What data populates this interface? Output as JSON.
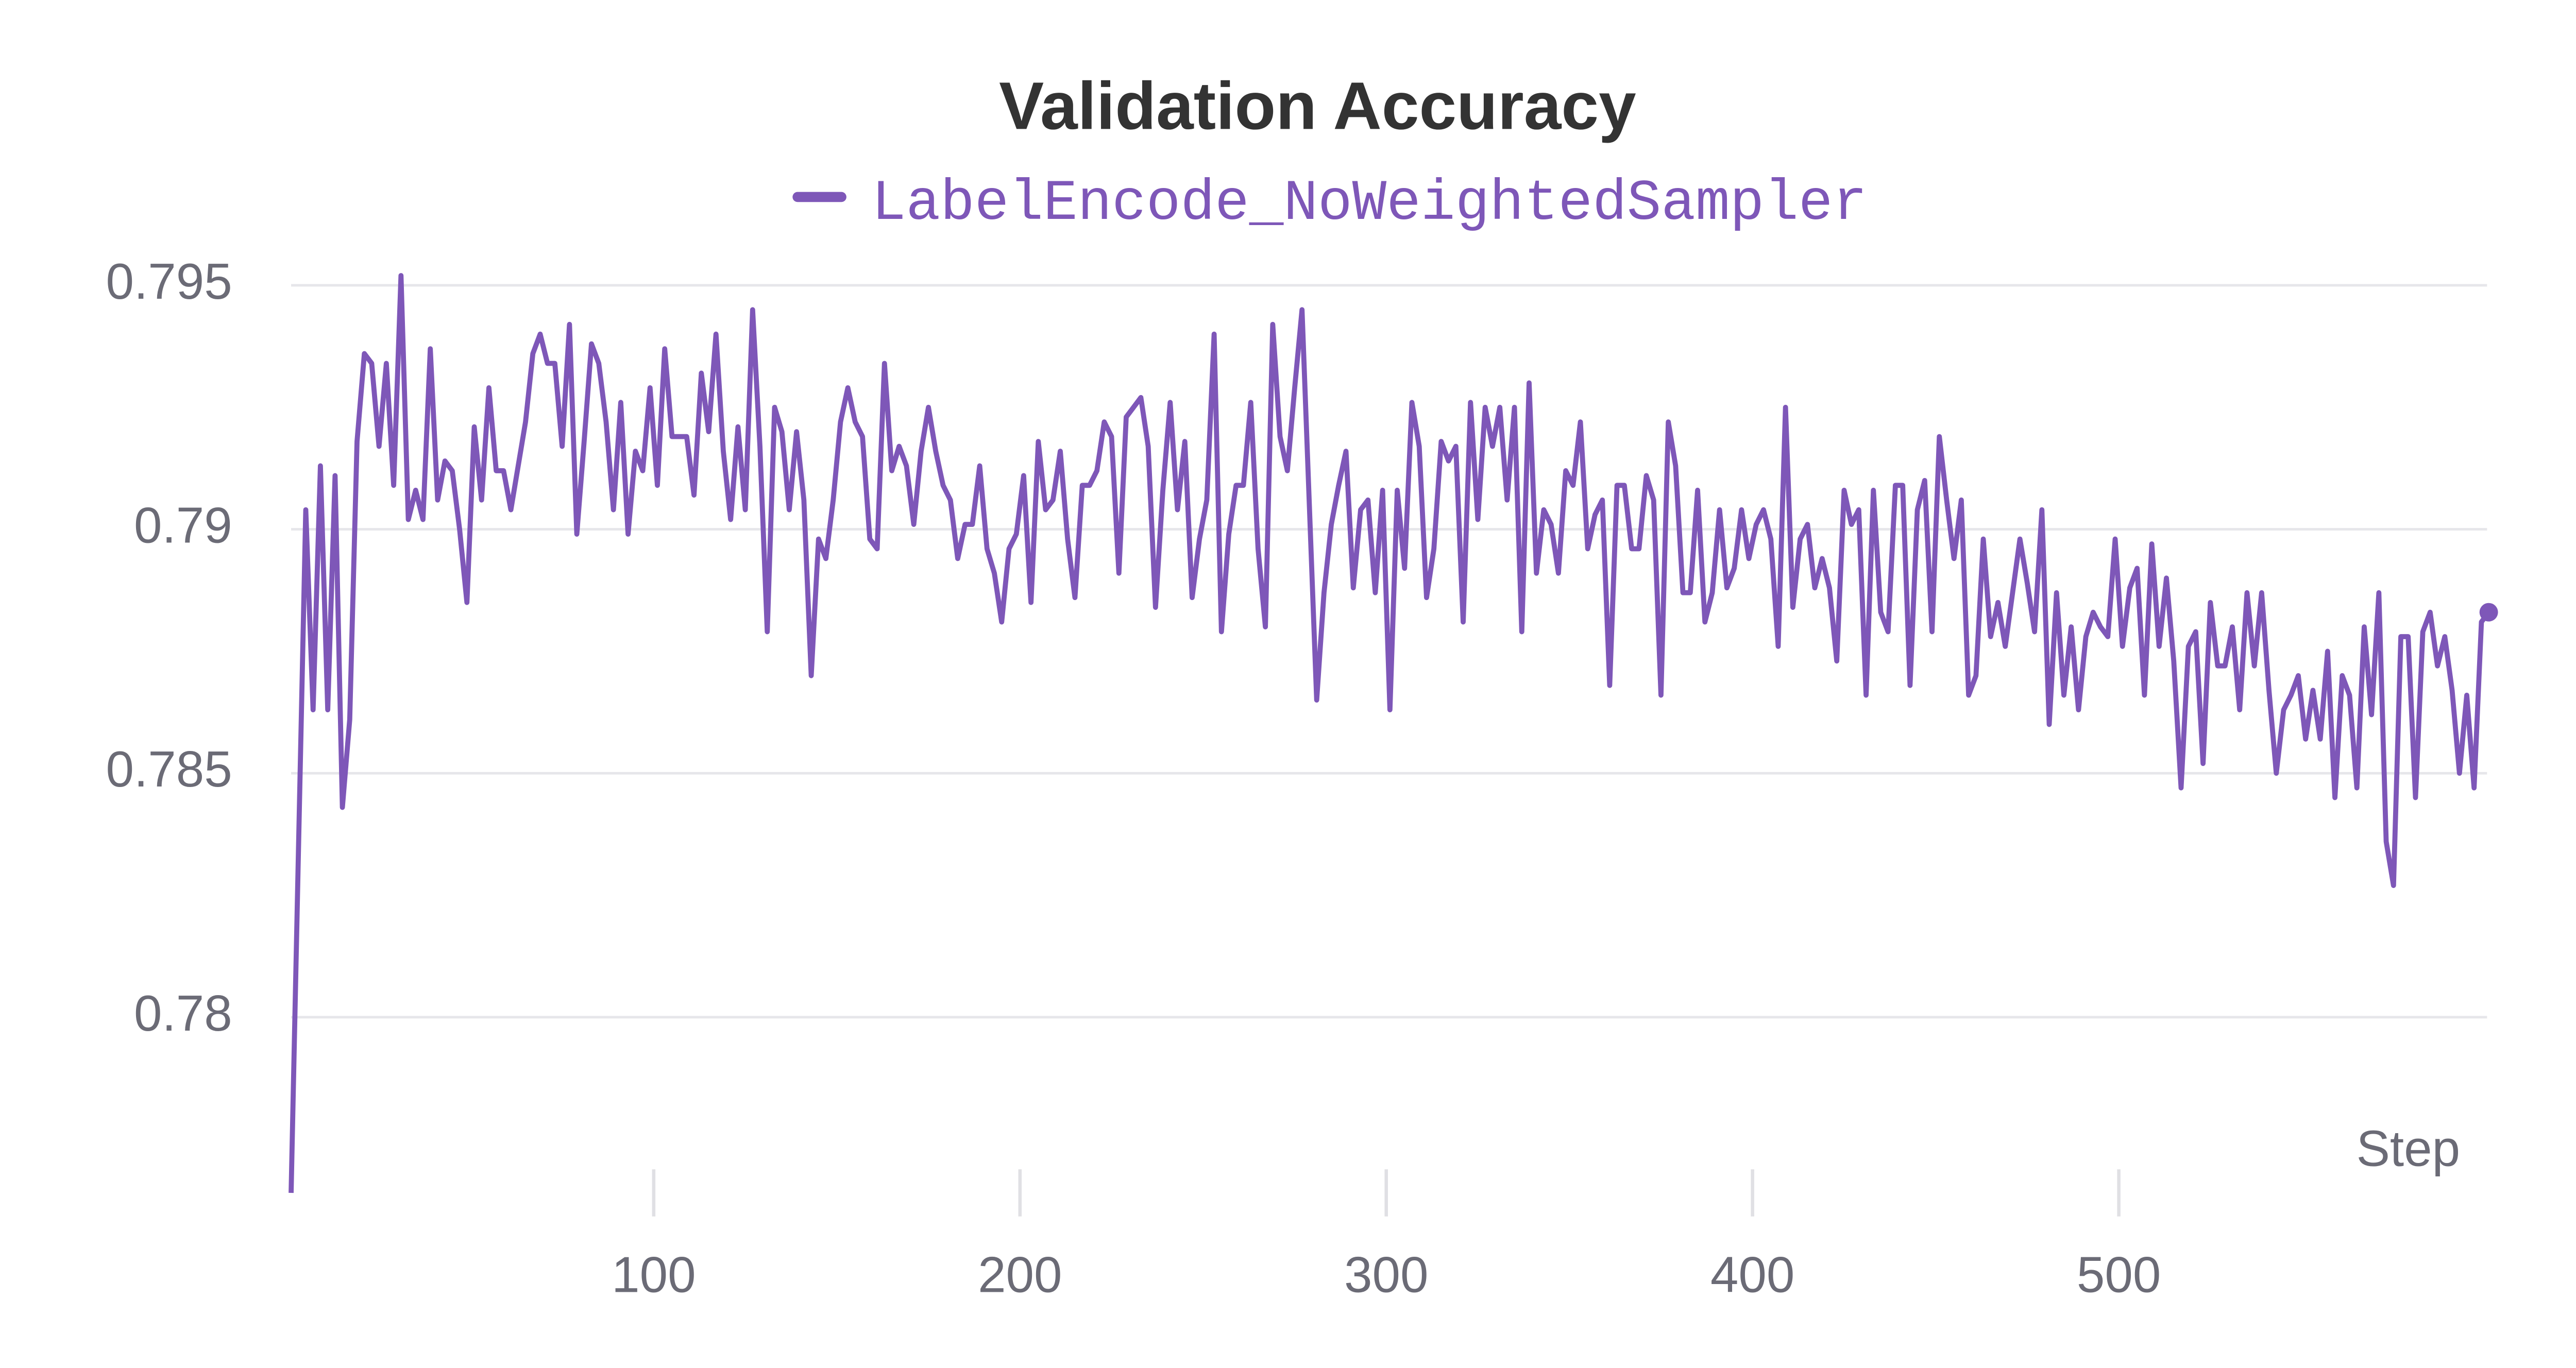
{
  "chart_data": {
    "type": "line",
    "title": "Validation Accuracy",
    "x_label": "Step",
    "xlim": [
      1,
      601
    ],
    "ylim": [
      0.7764,
      0.7955
    ],
    "xticks": [
      100,
      200,
      300,
      400,
      500
    ],
    "yticks": [
      0.78,
      0.785,
      0.79,
      0.795
    ],
    "grid": true,
    "legend": "top",
    "x": [
      1,
      5,
      7,
      9,
      11,
      13,
      15,
      17,
      19,
      21,
      23,
      25,
      27,
      29,
      31,
      33,
      35,
      37,
      39,
      41,
      43,
      45,
      47,
      49,
      51,
      53,
      55,
      57,
      59,
      61,
      63,
      65,
      67,
      69,
      71,
      73,
      75,
      77,
      79,
      81,
      83,
      85,
      87,
      89,
      91,
      93,
      95,
      97,
      99,
      101,
      103,
      105,
      107,
      109,
      111,
      113,
      115,
      117,
      119,
      121,
      123,
      125,
      127,
      129,
      131,
      133,
      135,
      137,
      139,
      141,
      143,
      145,
      147,
      149,
      151,
      153,
      155,
      157,
      159,
      161,
      163,
      165,
      167,
      169,
      171,
      173,
      175,
      177,
      179,
      181,
      183,
      185,
      187,
      189,
      191,
      193,
      195,
      197,
      199,
      201,
      203,
      205,
      207,
      209,
      211,
      213,
      215,
      217,
      219,
      221,
      223,
      225,
      227,
      229,
      231,
      233,
      235,
      237,
      239,
      241,
      243,
      245,
      247,
      249,
      251,
      253,
      255,
      257,
      259,
      261,
      263,
      265,
      267,
      269,
      271,
      273,
      275,
      277,
      279,
      281,
      283,
      285,
      287,
      289,
      291,
      293,
      295,
      297,
      299,
      301,
      303,
      305,
      307,
      309,
      311,
      313,
      315,
      317,
      319,
      321,
      323,
      325,
      327,
      329,
      331,
      333,
      335,
      337,
      339,
      341,
      343,
      345,
      347,
      349,
      351,
      353,
      355,
      357,
      359,
      361,
      363,
      365,
      367,
      369,
      371,
      373,
      375,
      377,
      379,
      381,
      383,
      385,
      387,
      389,
      391,
      393,
      395,
      397,
      399,
      401,
      403,
      405,
      407,
      409,
      411,
      413,
      415,
      417,
      419,
      421,
      423,
      425,
      427,
      429,
      431,
      433,
      435,
      437,
      439,
      441,
      443,
      445,
      447,
      449,
      451,
      453,
      455,
      457,
      459,
      461,
      463,
      465,
      467,
      469,
      471,
      473,
      475,
      477,
      479,
      481,
      483,
      485,
      487,
      489,
      491,
      493,
      495,
      497,
      499,
      501,
      503,
      505,
      507,
      509,
      511,
      513,
      515,
      517,
      519,
      521,
      523,
      525,
      527,
      529,
      531,
      533,
      535,
      537,
      539,
      541,
      543,
      545,
      547,
      549,
      551,
      553,
      555,
      557,
      559,
      561,
      563,
      565,
      567,
      569,
      571,
      573,
      575,
      577,
      579,
      581,
      583,
      585,
      587,
      589,
      591,
      593,
      595,
      597,
      599,
      601
    ],
    "series": [
      {
        "name": "LabelEncode_NoWeightedSampler",
        "color": "#7e57b8",
        "values": [
          0.7764,
          0.7904,
          0.7863,
          0.7913,
          0.7863,
          0.7911,
          0.7843,
          0.7861,
          0.7918,
          0.7936,
          0.7934,
          0.7917,
          0.7934,
          0.7909,
          0.7952,
          0.7902,
          0.7908,
          0.7902,
          0.7937,
          0.7906,
          0.7914,
          0.7912,
          0.79,
          0.7885,
          0.7921,
          0.7906,
          0.7929,
          0.7912,
          0.7912,
          0.7904,
          0.7913,
          0.7922,
          0.7936,
          0.794,
          0.7934,
          0.7934,
          0.7917,
          0.7942,
          0.7899,
          0.7918,
          0.7938,
          0.7934,
          0.7922,
          0.7904,
          0.7926,
          0.7899,
          0.7916,
          0.7912,
          0.7929,
          0.7909,
          0.7937,
          0.7919,
          0.7919,
          0.7919,
          0.7907,
          0.7932,
          0.792,
          0.794,
          0.7916,
          0.7902,
          0.7921,
          0.7904,
          0.7945,
          0.7917,
          0.7879,
          0.7925,
          0.792,
          0.7904,
          0.792,
          0.7906,
          0.787,
          0.7898,
          0.7894,
          0.7906,
          0.7922,
          0.7929,
          0.7922,
          0.7919,
          0.7898,
          0.7896,
          0.7934,
          0.7912,
          0.7917,
          0.7913,
          0.7901,
          0.7916,
          0.7925,
          0.7916,
          0.7909,
          0.7906,
          0.7894,
          0.7901,
          0.7901,
          0.7913,
          0.7896,
          0.7891,
          0.7881,
          0.7896,
          0.7899,
          0.7911,
          0.7885,
          0.7918,
          0.7904,
          0.7906,
          0.7916,
          0.7898,
          0.7886,
          0.7909,
          0.7909,
          0.7912,
          0.7922,
          0.7919,
          0.7891,
          0.7923,
          0.7925,
          0.7927,
          0.7917,
          0.7884,
          0.7908,
          0.7926,
          0.7904,
          0.7918,
          0.7886,
          0.7898,
          0.7906,
          0.794,
          0.7879,
          0.7899,
          0.7909,
          0.7909,
          0.7926,
          0.7896,
          0.788,
          0.7942,
          0.7919,
          0.7912,
          0.7929,
          0.7945,
          0.7905,
          0.7865,
          0.7887,
          0.7901,
          0.7909,
          0.7916,
          0.7888,
          0.7904,
          0.7906,
          0.7887,
          0.7908,
          0.7863,
          0.7908,
          0.7892,
          0.7926,
          0.7917,
          0.7886,
          0.7896,
          0.7918,
          0.7914,
          0.7917,
          0.7881,
          0.7926,
          0.7902,
          0.7925,
          0.7917,
          0.7925,
          0.7906,
          0.7925,
          0.7879,
          0.793,
          0.7891,
          0.7904,
          0.7901,
          0.7891,
          0.7912,
          0.7909,
          0.7922,
          0.7896,
          0.7903,
          0.7906,
          0.7868,
          0.7909,
          0.7909,
          0.7896,
          0.7896,
          0.7911,
          0.7906,
          0.7866,
          0.7922,
          0.7913,
          0.7887,
          0.7887,
          0.7908,
          0.7881,
          0.7887,
          0.7904,
          0.7888,
          0.7892,
          0.7904,
          0.7894,
          0.7901,
          0.7904,
          0.7898,
          0.7876,
          0.7925,
          0.7884,
          0.7898,
          0.7901,
          0.7888,
          0.7894,
          0.7888,
          0.7873,
          0.7908,
          0.7901,
          0.7904,
          0.7866,
          0.7908,
          0.7883,
          0.7879,
          0.7909,
          0.7909,
          0.7868,
          0.7904,
          0.791,
          0.7879,
          0.7919,
          0.7906,
          0.7894,
          0.7906,
          0.7866,
          0.787,
          0.7898,
          0.7878,
          0.7885,
          0.7876,
          0.7887,
          0.7898,
          0.7889,
          0.7879,
          0.7904,
          0.786,
          0.7887,
          0.7866,
          0.788,
          0.7863,
          0.7878,
          0.7883,
          0.788,
          0.7878,
          0.7898,
          0.7876,
          0.7888,
          0.7892,
          0.7866,
          0.7897,
          0.7876,
          0.789,
          0.7873,
          0.7847,
          0.7876,
          0.7879,
          0.7852,
          0.7885,
          0.7872,
          0.7872,
          0.788,
          0.7863,
          0.7887,
          0.7872,
          0.7887,
          0.7867,
          0.785,
          0.7863,
          0.7866,
          0.787,
          0.7857,
          0.7867,
          0.7857,
          0.7875,
          0.7845,
          0.787,
          0.7866,
          0.7847,
          0.788,
          0.7862,
          0.7887,
          0.7836,
          0.7827,
          0.7878,
          0.7878,
          0.7845,
          0.7879,
          0.7883,
          0.7872,
          0.7878,
          0.7867,
          0.785,
          0.7866,
          0.7847,
          0.7881,
          0.7883
        ]
      }
    ]
  }
}
